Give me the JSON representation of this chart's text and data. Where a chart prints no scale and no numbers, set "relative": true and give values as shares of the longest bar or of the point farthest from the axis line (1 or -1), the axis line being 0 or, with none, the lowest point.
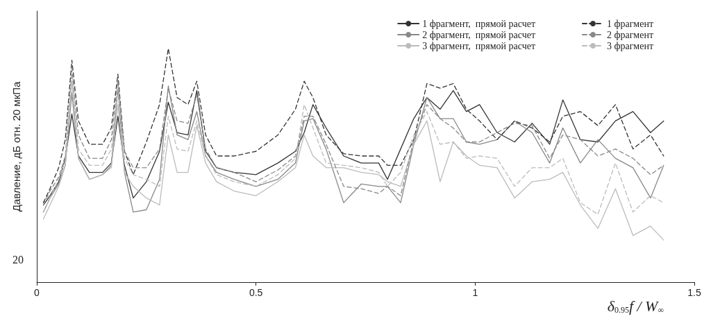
{
  "chart_data": {
    "type": "line",
    "relative": true,
    "xlabel": "δ$_{0.95}$f / W$_{∞}$",
    "ylabel": "Давление, дБ отн. 20 мкПа",
    "annotations": [
      "20"
    ],
    "xlim": [
      0,
      1.5
    ],
    "xticks": [
      0,
      0.5,
      1,
      1.5
    ],
    "grid": false,
    "legend": "top right",
    "marker": "none",
    "x": [
      0.015,
      0.03,
      0.05,
      0.065,
      0.08,
      0.095,
      0.12,
      0.15,
      0.17,
      0.185,
      0.2,
      0.22,
      0.25,
      0.28,
      0.3,
      0.32,
      0.345,
      0.365,
      0.385,
      0.41,
      0.45,
      0.5,
      0.55,
      0.59,
      0.61,
      0.63,
      0.66,
      0.7,
      0.74,
      0.78,
      0.8,
      0.83,
      0.86,
      0.89,
      0.92,
      0.95,
      0.98,
      1.01,
      1.05,
      1.09,
      1.13,
      1.17,
      1.2,
      1.24,
      1.28,
      1.32,
      1.36,
      1.4,
      1.43
    ],
    "series": [
      {
        "name": "1 фрагмент,  прямой расчет",
        "color": "#333333",
        "line_style": "solid",
        "values": [
          0.33,
          0.37,
          0.43,
          0.53,
          0.72,
          0.54,
          0.47,
          0.47,
          0.51,
          0.71,
          0.5,
          0.36,
          0.43,
          0.56,
          0.77,
          0.64,
          0.63,
          0.82,
          0.56,
          0.49,
          0.47,
          0.46,
          0.51,
          0.56,
          0.64,
          0.76,
          0.66,
          0.54,
          0.51,
          0.51,
          0.44,
          0.57,
          0.7,
          0.79,
          0.74,
          0.82,
          0.73,
          0.76,
          0.64,
          0.6,
          0.68,
          0.59,
          0.78,
          0.61,
          0.6,
          0.69,
          0.73,
          0.64,
          0.69
        ]
      },
      {
        "name": "2 фрагмент,  прямой расчет",
        "color": "#888888",
        "line_style": "solid",
        "values": [
          0.3,
          0.36,
          0.42,
          0.5,
          0.81,
          0.53,
          0.44,
          0.46,
          0.5,
          0.83,
          0.47,
          0.3,
          0.31,
          0.44,
          0.84,
          0.63,
          0.61,
          0.73,
          0.54,
          0.47,
          0.44,
          0.41,
          0.44,
          0.51,
          0.69,
          0.7,
          0.57,
          0.34,
          0.42,
          0.41,
          0.41,
          0.34,
          0.59,
          0.79,
          0.7,
          0.7,
          0.6,
          0.59,
          0.61,
          0.69,
          0.64,
          0.51,
          0.66,
          0.51,
          0.61,
          0.53,
          0.49,
          0.36,
          0.5
        ]
      },
      {
        "name": "3 фрагмент,  прямой расчет",
        "color": "#bbbbbb",
        "line_style": "solid",
        "values": [
          0.27,
          0.33,
          0.41,
          0.5,
          0.86,
          0.53,
          0.44,
          0.46,
          0.49,
          0.76,
          0.47,
          0.41,
          0.36,
          0.33,
          0.63,
          0.47,
          0.47,
          0.67,
          0.51,
          0.43,
          0.39,
          0.37,
          0.43,
          0.49,
          0.63,
          0.54,
          0.49,
          0.49,
          0.47,
          0.46,
          0.43,
          0.41,
          0.59,
          0.69,
          0.43,
          0.6,
          0.54,
          0.5,
          0.49,
          0.36,
          0.43,
          0.44,
          0.47,
          0.33,
          0.23,
          0.4,
          0.2,
          0.24,
          0.18
        ]
      },
      {
        "name": "1 фрагмент",
        "color": "#333333",
        "line_style": "dashed",
        "values": [
          0.34,
          0.4,
          0.49,
          0.61,
          0.95,
          0.69,
          0.59,
          0.59,
          0.66,
          0.89,
          0.56,
          0.46,
          0.6,
          0.76,
          1,
          0.79,
          0.76,
          0.86,
          0.63,
          0.54,
          0.54,
          0.56,
          0.63,
          0.74,
          0.86,
          0.79,
          0.63,
          0.55,
          0.54,
          0.54,
          0.5,
          0.5,
          0.61,
          0.85,
          0.83,
          0.85,
          0.74,
          0.69,
          0.61,
          0.69,
          0.66,
          0.6,
          0.71,
          0.73,
          0.67,
          0.76,
          0.57,
          0.63,
          0.54
        ]
      },
      {
        "name": "2 фрагмент",
        "color": "#888888",
        "line_style": "dashed",
        "values": [
          0.33,
          0.39,
          0.45,
          0.54,
          0.91,
          0.63,
          0.53,
          0.53,
          0.61,
          0.86,
          0.56,
          0.49,
          0.49,
          0.57,
          0.83,
          0.69,
          0.68,
          0.8,
          0.57,
          0.49,
          0.47,
          0.43,
          0.48,
          0.54,
          0.71,
          0.71,
          0.59,
          0.41,
          0.4,
          0.38,
          0.41,
          0.37,
          0.61,
          0.76,
          0.7,
          0.66,
          0.6,
          0.6,
          0.64,
          0.68,
          0.67,
          0.53,
          0.63,
          0.61,
          0.54,
          0.57,
          0.53,
          0.46,
          0.5
        ]
      },
      {
        "name": "3 фрагмент",
        "color": "#bbbbbb",
        "line_style": "dashed",
        "values": [
          0.3,
          0.36,
          0.44,
          0.52,
          0.89,
          0.57,
          0.5,
          0.5,
          0.57,
          0.84,
          0.53,
          0.46,
          0.44,
          0.41,
          0.71,
          0.57,
          0.56,
          0.69,
          0.54,
          0.46,
          0.43,
          0.41,
          0.46,
          0.53,
          0.76,
          0.66,
          0.51,
          0.5,
          0.49,
          0.47,
          0.41,
          0.47,
          0.63,
          0.73,
          0.59,
          0.6,
          0.53,
          0.54,
          0.53,
          0.41,
          0.49,
          0.49,
          0.53,
          0.34,
          0.29,
          0.51,
          0.3,
          0.37,
          0.34
        ]
      }
    ]
  }
}
